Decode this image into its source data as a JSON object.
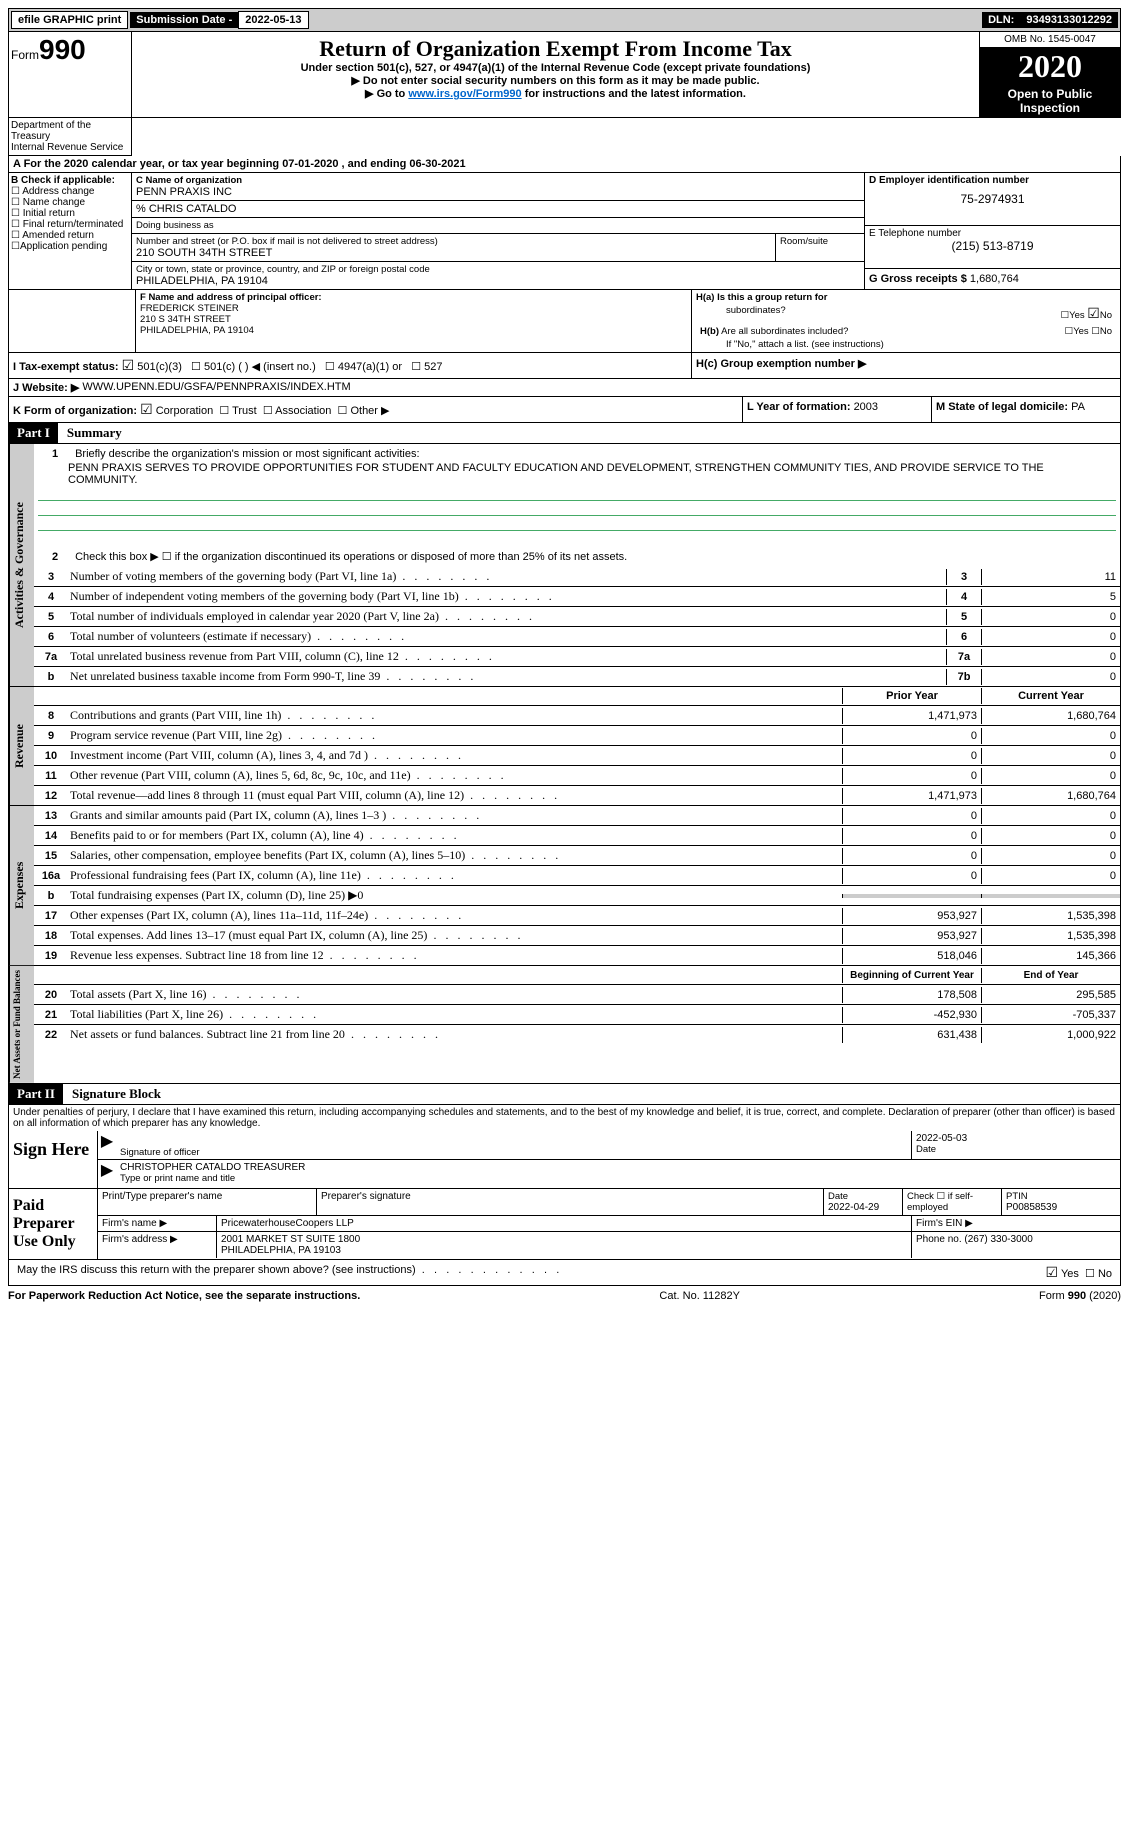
{
  "topbar": {
    "efile": "efile GRAPHIC print",
    "subdate_label": "Submission Date - ",
    "subdate_val": "2022-05-13",
    "dln_label": "DLN: ",
    "dln_val": "93493133012292"
  },
  "header": {
    "form_word": "Form",
    "form_num": "990",
    "dept": "Department of the Treasury\nInternal Revenue Service",
    "title": "Return of Organization Exempt From Income Tax",
    "subtitle": "Under section 501(c), 527, or 4947(a)(1) of the Internal Revenue Code (except private foundations)",
    "line1": "▶ Do not enter social security numbers on this form as it may be made public.",
    "line2_pre": "▶ Go to ",
    "line2_link": "www.irs.gov/Form990",
    "line2_post": " for instructions and the latest information.",
    "omb": "OMB No. 1545-0047",
    "year": "2020",
    "open1": "Open to Public",
    "open2": "Inspection"
  },
  "rowA": "A For the 2020 calendar year, or tax year beginning 07-01-2020    , and ending 06-30-2021",
  "B": {
    "label": "B Check if applicable:",
    "items": [
      "Address change",
      "Name change",
      "Initial return",
      "Final return/terminated",
      "Amended return",
      "Application pending"
    ],
    "item_prefix": [
      "☐ ",
      "☐ ",
      "☐ ",
      "☐ ",
      "☐ ",
      "☐"
    ]
  },
  "C": {
    "name_label": "C Name of organization",
    "name": "PENN PRAXIS INC",
    "care_label": "% CHRIS CATALDO",
    "dba_label": "Doing business as",
    "street_label": "Number and street (or P.O. box if mail is not delivered to street address)",
    "room_label": "Room/suite",
    "street": "210 SOUTH 34TH STREET",
    "city_label": "City or town, state or province, country, and ZIP or foreign postal code",
    "city": "PHILADELPHIA, PA  19104"
  },
  "D": {
    "label": "D Employer identification number",
    "val": "75-2974931"
  },
  "E": {
    "label": "E Telephone number",
    "val": "(215) 513-8719"
  },
  "G": {
    "label": "G Gross receipts $",
    "val": "1,680,764"
  },
  "F": {
    "label": "F  Name and address of principal officer:",
    "name": "FREDERICK STEINER",
    "addr1": "210 S 34TH STREET",
    "addr2": "PHILADELPHIA, PA  19104"
  },
  "H": {
    "a_label": "H(a)  Is this a group return for",
    "a_label2": "subordinates?",
    "a_yes": "Yes",
    "a_no": "No",
    "b_label": "H(b)  Are all subordinates included?",
    "b_yes": "Yes",
    "b_no": "No",
    "b_note": "If \"No,\" attach a list. (see instructions)",
    "c_label": "H(c)  Group exemption number ▶"
  },
  "I": {
    "label": "I   Tax-exempt status:",
    "opt1": "501(c)(3)",
    "opt2": "501(c) (  ) ◀ (insert no.)",
    "opt3": "4947(a)(1) or",
    "opt4": "527"
  },
  "J": {
    "label": "J   Website: ▶",
    "val": "WWW.UPENN.EDU/GSFA/PENNPRAXIS/INDEX.HTM"
  },
  "K": {
    "label": "K Form of organization:",
    "opts": [
      "Corporation",
      "Trust",
      "Association",
      "Other ▶"
    ]
  },
  "L": {
    "label": "L Year of formation: ",
    "val": "2003"
  },
  "M": {
    "label": "M State of legal domicile: ",
    "val": "PA"
  },
  "part1": {
    "header": "Part I",
    "title": "Summary",
    "l1_label": "Briefly describe the organization's mission or most significant activities:",
    "l1_text": "PENN PRAXIS SERVES TO PROVIDE OPPORTUNITIES FOR STUDENT AND FACULTY EDUCATION AND DEVELOPMENT, STRENGTHEN COMMUNITY TIES, AND PROVIDE SERVICE TO THE COMMUNITY.",
    "l2": "Check this box ▶ ☐  if the organization discontinued its operations or disposed of more than 25% of its net assets.",
    "lines_gov": [
      {
        "n": "3",
        "t": "Number of voting members of the governing body (Part VI, line 1a)",
        "box": "3",
        "v": "11"
      },
      {
        "n": "4",
        "t": "Number of independent voting members of the governing body (Part VI, line 1b)",
        "box": "4",
        "v": "5"
      },
      {
        "n": "5",
        "t": "Total number of individuals employed in calendar year 2020 (Part V, line 2a)",
        "box": "5",
        "v": "0"
      },
      {
        "n": "6",
        "t": "Total number of volunteers (estimate if necessary)",
        "box": "6",
        "v": "0"
      },
      {
        "n": "7a",
        "t": "Total unrelated business revenue from Part VIII, column (C), line 12",
        "box": "7a",
        "v": "0"
      },
      {
        "n": "b",
        "t": "Net unrelated business taxable income from Form 990-T, line 39",
        "box": "7b",
        "v": "0"
      }
    ],
    "col_prior": "Prior Year",
    "col_curr": "Current Year",
    "rev": [
      {
        "n": "8",
        "t": "Contributions and grants (Part VIII, line 1h)",
        "p": "1,471,973",
        "c": "1,680,764"
      },
      {
        "n": "9",
        "t": "Program service revenue (Part VIII, line 2g)",
        "p": "0",
        "c": "0"
      },
      {
        "n": "10",
        "t": "Investment income (Part VIII, column (A), lines 3, 4, and 7d )",
        "p": "0",
        "c": "0"
      },
      {
        "n": "11",
        "t": "Other revenue (Part VIII, column (A), lines 5, 6d, 8c, 9c, 10c, and 11e)",
        "p": "0",
        "c": "0"
      },
      {
        "n": "12",
        "t": "Total revenue—add lines 8 through 11 (must equal Part VIII, column (A), line 12)",
        "p": "1,471,973",
        "c": "1,680,764"
      }
    ],
    "exp": [
      {
        "n": "13",
        "t": "Grants and similar amounts paid (Part IX, column (A), lines 1–3 )",
        "p": "0",
        "c": "0"
      },
      {
        "n": "14",
        "t": "Benefits paid to or for members (Part IX, column (A), line 4)",
        "p": "0",
        "c": "0"
      },
      {
        "n": "15",
        "t": "Salaries, other compensation, employee benefits (Part IX, column (A), lines 5–10)",
        "p": "0",
        "c": "0"
      },
      {
        "n": "16a",
        "t": "Professional fundraising fees (Part IX, column (A), line 11e)",
        "p": "0",
        "c": "0"
      },
      {
        "n": "b",
        "t": "Total fundraising expenses (Part IX, column (D), line 25) ▶0",
        "p": "",
        "c": "",
        "shaded": true
      },
      {
        "n": "17",
        "t": "Other expenses (Part IX, column (A), lines 11a–11d, 11f–24e)",
        "p": "953,927",
        "c": "1,535,398"
      },
      {
        "n": "18",
        "t": "Total expenses. Add lines 13–17 (must equal Part IX, column (A), line 25)",
        "p": "953,927",
        "c": "1,535,398"
      },
      {
        "n": "19",
        "t": "Revenue less expenses. Subtract line 18 from line 12",
        "p": "518,046",
        "c": "145,366"
      }
    ],
    "col_beg": "Beginning of Current Year",
    "col_end": "End of Year",
    "net": [
      {
        "n": "20",
        "t": "Total assets (Part X, line 16)",
        "p": "178,508",
        "c": "295,585"
      },
      {
        "n": "21",
        "t": "Total liabilities (Part X, line 26)",
        "p": "-452,930",
        "c": "-705,337"
      },
      {
        "n": "22",
        "t": "Net assets or fund balances. Subtract line 21 from line 20",
        "p": "631,438",
        "c": "1,000,922"
      }
    ],
    "vlabel_gov": "Activities & Governance",
    "vlabel_rev": "Revenue",
    "vlabel_exp": "Expenses",
    "vlabel_net": "Net Assets or Fund Balances"
  },
  "part2": {
    "header": "Part II",
    "title": "Signature Block",
    "decl": "Under penalties of perjury, I declare that I have examined this return, including accompanying schedules and statements, and to the best of my knowledge and belief, it is true, correct, and complete. Declaration of preparer (other than officer) is based on all information of which preparer has any knowledge."
  },
  "sign": {
    "label": "Sign Here",
    "sig_officer": "Signature of officer",
    "date": "Date",
    "date_val": "2022-05-03",
    "name": "CHRISTOPHER CATALDO  TREASURER",
    "name_label": "Type or print name and title"
  },
  "prep": {
    "label": "Paid Preparer Use Only",
    "c1": "Print/Type preparer's name",
    "c2": "Preparer's signature",
    "c3": "Date",
    "c3v": "2022-04-29",
    "c4": "Check ☐ if self-employed",
    "c5": "PTIN",
    "c5v": "P00858539",
    "firm_label": "Firm's name    ▶",
    "firm": "PricewaterhouseCoopers LLP",
    "ein_label": "Firm's EIN ▶",
    "addr_label": "Firm's address ▶",
    "addr1": "2001 MARKET ST SUITE 1800",
    "addr2": "PHILADELPHIA, PA  19103",
    "phone_label": "Phone no. ",
    "phone": "(267) 330-3000"
  },
  "discuss": {
    "text": "May the IRS discuss this return with the preparer shown above? (see instructions)",
    "yes": "Yes",
    "no": "No"
  },
  "footer": {
    "left": "For Paperwork Reduction Act Notice, see the separate instructions.",
    "mid": "Cat. No. 11282Y",
    "right": "Form 990 (2020)"
  }
}
